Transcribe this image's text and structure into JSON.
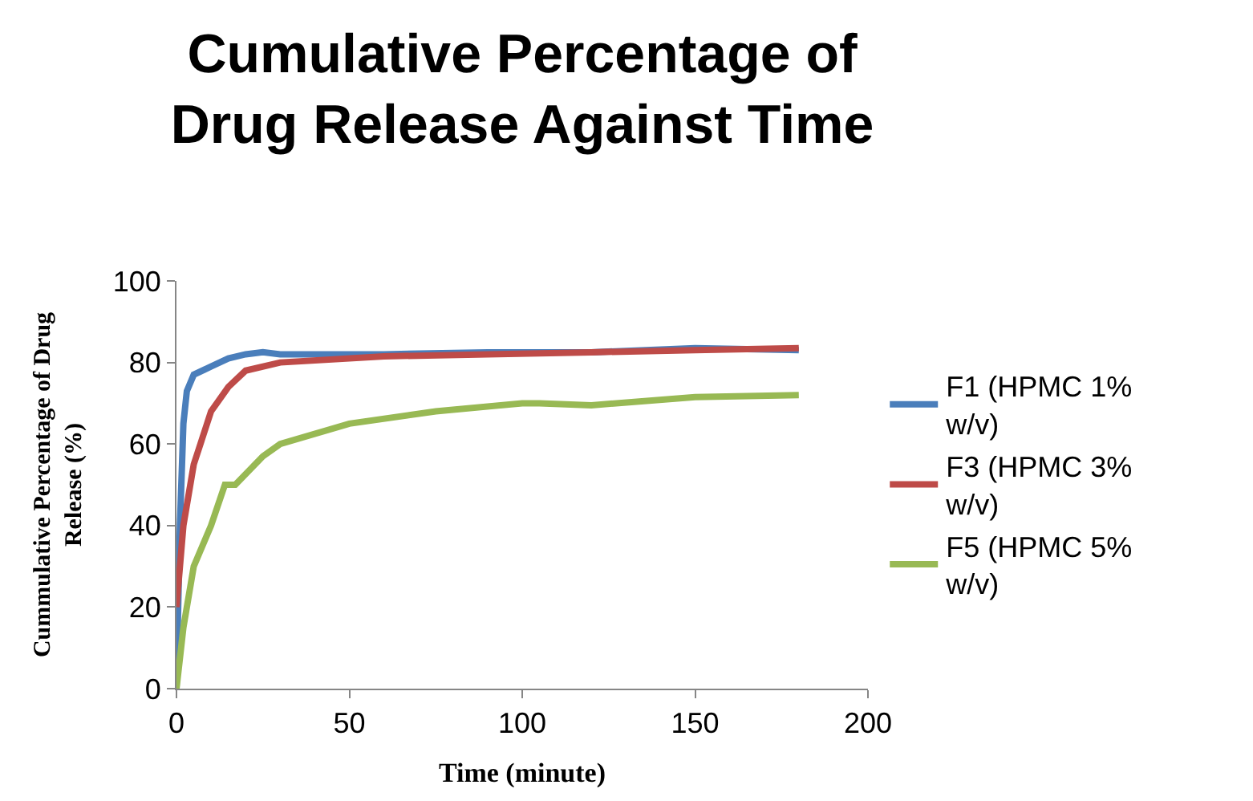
{
  "chart_data": {
    "type": "line",
    "title": "Cumulative Percentage of Drug Release Against Time",
    "xlabel": "Time (minute)",
    "ylabel": "Cummulative Percentage of Drug Release (%)",
    "xlim": [
      0,
      200
    ],
    "xticks": [
      0,
      50,
      100,
      150,
      200
    ],
    "ylim": [
      0,
      100
    ],
    "yticks": [
      0,
      20,
      40,
      60,
      80,
      100
    ],
    "grid": false,
    "legend": "right",
    "marker": "none",
    "line_style": "solid",
    "series": [
      {
        "name": "F1 (HPMC 1% w/v)",
        "color": "#4a7ebb",
        "x": [
          0,
          1,
          2,
          3,
          5,
          10,
          15,
          20,
          25,
          30,
          60,
          90,
          120,
          150,
          180
        ],
        "values": [
          0,
          40,
          65,
          73,
          77,
          79,
          81,
          82,
          82.5,
          82,
          82,
          82.5,
          82.5,
          83.5,
          83
        ]
      },
      {
        "name": "F3 (HPMC 3% w/v)",
        "color": "#be4b48",
        "x": [
          0,
          2,
          5,
          10,
          15,
          20,
          30,
          60,
          90,
          120,
          150,
          180
        ],
        "values": [
          20,
          40,
          55,
          68,
          74,
          78,
          80,
          81.5,
          82,
          82.5,
          83,
          83.5
        ]
      },
      {
        "name": "F5 (HPMC 5% w/v)",
        "color": "#98b954",
        "x": [
          0,
          2,
          5,
          10,
          14,
          17,
          25,
          30,
          50,
          75,
          100,
          105,
          120,
          150,
          180
        ],
        "values": [
          0,
          15,
          30,
          40,
          50,
          50,
          57,
          60,
          65,
          68,
          70,
          70,
          69.5,
          71.5,
          72
        ]
      }
    ]
  }
}
